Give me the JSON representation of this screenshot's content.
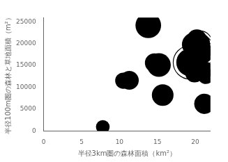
{
  "chart_data": {
    "type": "bubble",
    "xlabel": "半径3km圏の森林面積（km²）",
    "ylabel": "半径100m圏の森林と草地面積（m²）",
    "xlim": [
      0,
      22
    ],
    "ylim": [
      0,
      26000
    ],
    "xticks": [
      0,
      5,
      10,
      15,
      20
    ],
    "yticks": [
      0,
      5000,
      10000,
      15000,
      20000,
      25000
    ],
    "grid": false,
    "color": "#000000",
    "series": [
      {
        "marker": "circle",
        "x": [
          7.8,
          10.5,
          11.3,
          13.8,
          14.6,
          15.2,
          15.7,
          19.6,
          19.9,
          19.8,
          20.2,
          21.3,
          21.4,
          21.2
        ],
        "values": [
          900,
          11500,
          11600,
          24200,
          15600,
          15100,
          8200,
          14200,
          13200,
          19800,
          21000,
          14000,
          12600,
          6200
        ],
        "sizes": [
          200,
          280,
          380,
          700,
          380,
          600,
          500,
          380,
          360,
          600,
          420,
          300,
          280,
          440
        ]
      },
      {
        "marker": "ringed_circle",
        "x": [
          18.9,
          19.3,
          20.6,
          20.8,
          21.0,
          21.2
        ],
        "values": [
          16000,
          15700,
          20100,
          19300,
          18300,
          17500
        ],
        "sizes": [
          420,
          800,
          440,
          360,
          320,
          280
        ]
      }
    ]
  }
}
